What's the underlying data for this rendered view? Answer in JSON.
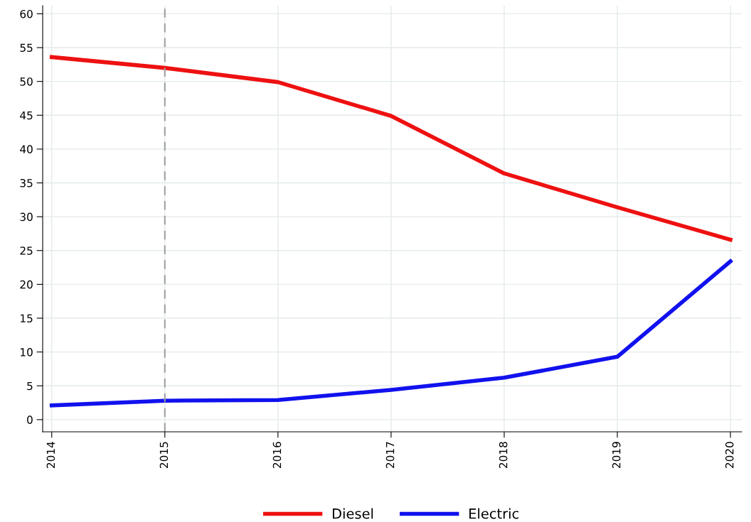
{
  "chart_data": {
    "type": "line",
    "x": [
      2014,
      2015,
      2016,
      2017,
      2018,
      2019,
      2020
    ],
    "series": [
      {
        "name": "Diesel",
        "color": "#ee1111",
        "values": [
          53.6,
          52.0,
          49.9,
          44.9,
          36.4,
          31.4,
          26.6
        ]
      },
      {
        "name": "Electric",
        "color": "#1111ee",
        "values": [
          2.1,
          2.8,
          2.9,
          4.4,
          6.2,
          9.3,
          23.4
        ]
      }
    ],
    "xlim": [
      2013.92,
      2020.1
    ],
    "xticks": [
      2014,
      2015,
      2016,
      2017,
      2018,
      2019,
      2020
    ],
    "ylim": [
      -1.8,
      61.2
    ],
    "yticks": [
      0,
      5,
      10,
      15,
      20,
      25,
      30,
      35,
      40,
      45,
      50,
      55,
      60
    ],
    "ref_lines": [
      {
        "axis": "x",
        "value": 2015,
        "color": "#a0a0a0",
        "line_style": "dashed"
      }
    ],
    "grid": true,
    "legend": "bottom",
    "marker": "none",
    "line_style": "solid"
  }
}
